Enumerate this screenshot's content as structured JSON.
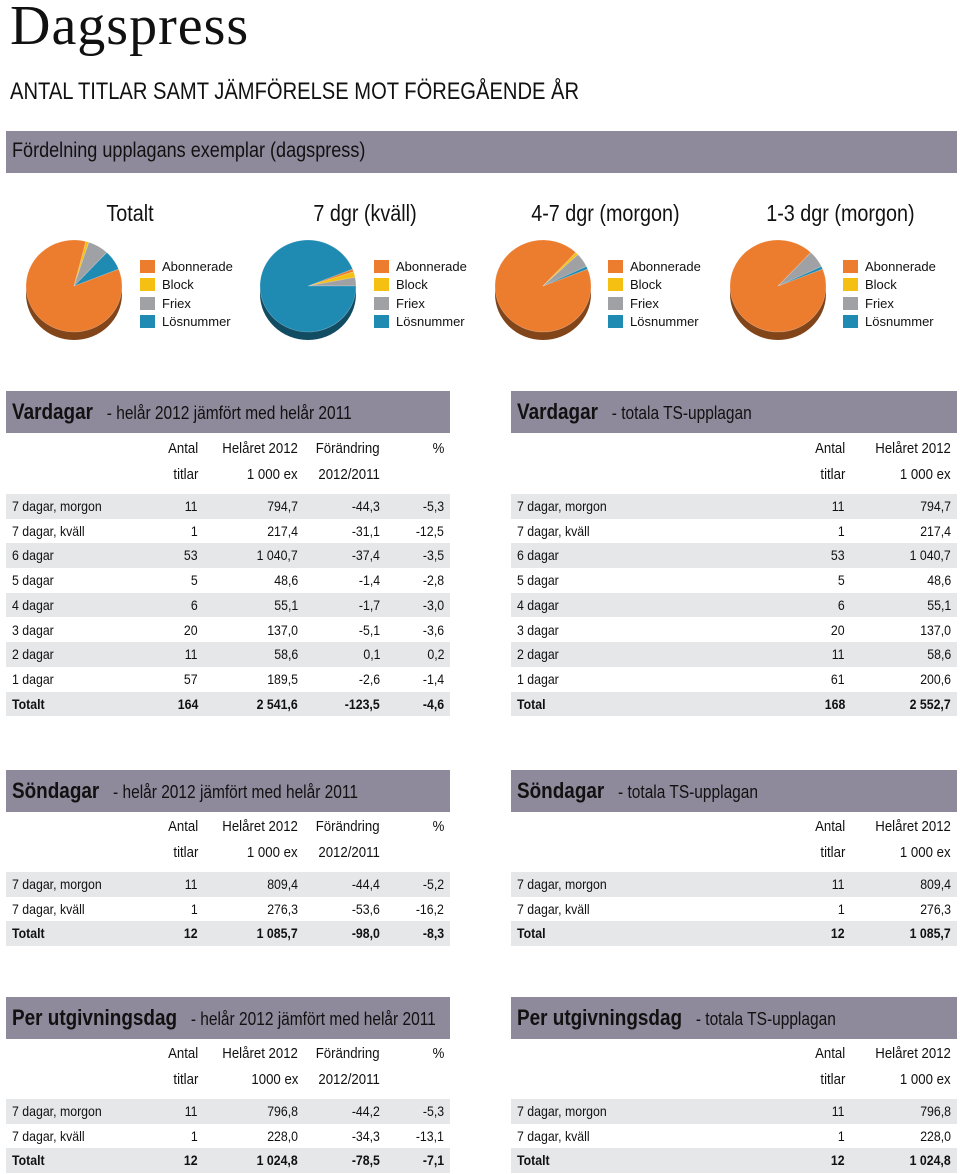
{
  "title": "Dagspress",
  "heading": "ANTAL TITLAR SAMT JÄMFÖRELSE MOT FÖREGÅENDE ÅR",
  "pie_section": {
    "band": "Fördelning upplagans exemplar (dagspress)",
    "legend": [
      {
        "label": "Abonnerade",
        "color": "#ec7c2e"
      },
      {
        "label": "Block",
        "color": "#f5c012"
      },
      {
        "label": "Friex",
        "color": "#a0a1a5"
      },
      {
        "label": "Lösnummer",
        "color": "#1f8bb3"
      }
    ],
    "charts": [
      {
        "title": "Totalt"
      },
      {
        "title": "7 dgr (kväll)"
      },
      {
        "title": "4-7 dgr (morgon)"
      },
      {
        "title": "1-3 dgr (morgon)"
      }
    ]
  },
  "chart_data": [
    {
      "type": "pie",
      "title": "Totalt",
      "labels": [
        "Abonnerade",
        "Block",
        "Friex",
        "Lösnummer"
      ],
      "values": [
        85,
        1,
        7,
        7
      ]
    },
    {
      "type": "pie",
      "title": "7 dgr (kväll)",
      "labels": [
        "Abonnerade",
        "Block",
        "Friex",
        "Lösnummer"
      ],
      "values": [
        1,
        2,
        3,
        94
      ]
    },
    {
      "type": "pie",
      "title": "4-7 dgr (morgon)",
      "labels": [
        "Abonnerade",
        "Block",
        "Friex",
        "Lösnummer"
      ],
      "values": [
        93,
        1,
        5,
        1
      ]
    },
    {
      "type": "pie",
      "title": "1-3 dgr (morgon)",
      "labels": [
        "Abonnerade",
        "Block",
        "Friex",
        "Lösnummer"
      ],
      "values": [
        93,
        0,
        6,
        1
      ]
    }
  ],
  "vardagar_cmp": {
    "title": "Vardagar",
    "subtitle": "- helår 2012 jämfört med helår 2011",
    "head1": [
      "Antal",
      "Helåret 2012",
      "Förändring",
      "%"
    ],
    "head2": [
      "titlar",
      "1 000 ex",
      "2012/2011",
      ""
    ],
    "rows": [
      [
        "7 dagar, morgon",
        "11",
        "794,7",
        "-44,3",
        "-5,3"
      ],
      [
        "7 dagar, kväll",
        "1",
        "217,4",
        "-31,1",
        "-12,5"
      ],
      [
        "6 dagar",
        "53",
        "1 040,7",
        "-37,4",
        "-3,5"
      ],
      [
        "5 dagar",
        "5",
        "48,6",
        "-1,4",
        "-2,8"
      ],
      [
        "4 dagar",
        "6",
        "55,1",
        "-1,7",
        "-3,0"
      ],
      [
        "3 dagar",
        "20",
        "137,0",
        "-5,1",
        "-3,6"
      ],
      [
        "2 dagar",
        "11",
        "58,6",
        "0,1",
        "0,2"
      ],
      [
        "1 dagar",
        "57",
        "189,5",
        "-2,6",
        "-1,4"
      ],
      [
        "Totalt",
        "164",
        "2 541,6",
        "-123,5",
        "-4,6"
      ]
    ]
  },
  "vardagar_ts": {
    "title": "Vardagar",
    "subtitle": "- totala TS-upplagan",
    "head1": [
      "Antal",
      "Helåret 2012"
    ],
    "head2": [
      "titlar",
      "1 000 ex"
    ],
    "rows": [
      [
        "7 dagar, morgon",
        "11",
        "794,7"
      ],
      [
        "7 dagar, kväll",
        "1",
        "217,4"
      ],
      [
        "6 dagar",
        "53",
        "1 040,7"
      ],
      [
        "5 dagar",
        "5",
        "48,6"
      ],
      [
        "4 dagar",
        "6",
        "55,1"
      ],
      [
        "3 dagar",
        "20",
        "137,0"
      ],
      [
        "2 dagar",
        "11",
        "58,6"
      ],
      [
        "1 dagar",
        "61",
        "200,6"
      ],
      [
        "Total",
        "168",
        "2 552,7"
      ]
    ]
  },
  "sondagar_cmp": {
    "title": "Söndagar",
    "subtitle": "- helår 2012 jämfört med helår 2011",
    "head1": [
      "Antal",
      "Helåret 2012",
      "Förändring",
      "%"
    ],
    "head2": [
      "titlar",
      "1 000 ex",
      "2012/2011",
      ""
    ],
    "rows": [
      [
        "7 dagar, morgon",
        "11",
        "809,4",
        "-44,4",
        "-5,2"
      ],
      [
        "7 dagar, kväll",
        "1",
        "276,3",
        "-53,6",
        "-16,2"
      ],
      [
        "Totalt",
        "12",
        "1 085,7",
        "-98,0",
        "-8,3"
      ]
    ]
  },
  "sondagar_ts": {
    "title": "Söndagar",
    "subtitle": "- totala TS-upplagan",
    "head1": [
      "Antal",
      "Helåret 2012"
    ],
    "head2": [
      "titlar",
      "1 000 ex"
    ],
    "rows": [
      [
        "7 dagar, morgon",
        "11",
        "809,4"
      ],
      [
        "7 dagar, kväll",
        "1",
        "276,3"
      ],
      [
        "Total",
        "12",
        "1 085,7"
      ]
    ]
  },
  "per_cmp": {
    "title": "Per utgivningsdag",
    "subtitle": "- helår 2012 jämfört med helår 2011",
    "head1": [
      "Antal",
      "Helåret 2012",
      "Förändring",
      "%"
    ],
    "head2": [
      "titlar",
      "1000 ex",
      "2012/2011",
      ""
    ],
    "rows": [
      [
        "7 dagar, morgon",
        "11",
        "796,8",
        "-44,2",
        "-5,3"
      ],
      [
        "7 dagar, kväll",
        "1",
        "228,0",
        "-34,3",
        "-13,1"
      ],
      [
        "Totalt",
        "12",
        "1 024,8",
        "-78,5",
        "-7,1"
      ]
    ]
  },
  "per_ts": {
    "title": "Per utgivningsdag",
    "subtitle": "- totala TS-upplagan",
    "head1": [
      "Antal",
      "Helåret 2012"
    ],
    "head2": [
      "titlar",
      "1 000 ex"
    ],
    "rows": [
      [
        "7 dagar, morgon",
        "11",
        "796,8"
      ],
      [
        "7 dagar, kväll",
        "1",
        "228,0"
      ],
      [
        "Totalt",
        "12",
        "1 024,8"
      ]
    ]
  }
}
